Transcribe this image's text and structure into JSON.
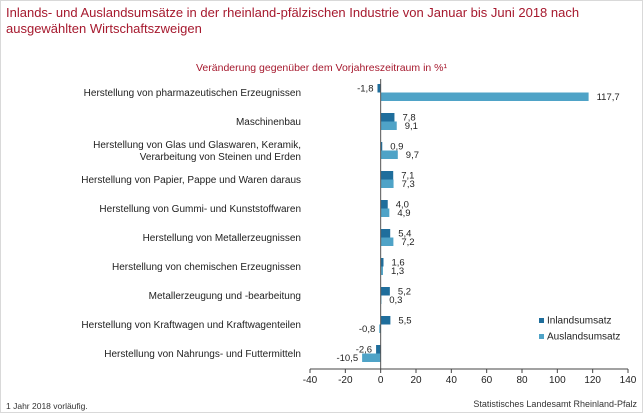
{
  "title": "Inlands- und Auslandsumsätze in der rheinland-pfälzischen Industrie von Januar bis Juni 2018 nach ausgewählten Wirtschaftszweigen",
  "footnote": "1 Jahr 2018 vorläufig.",
  "source": "Statistisches Landesamt Rheinland-Pfalz",
  "colors": {
    "title": "#a6192e",
    "inland": "#1f6e9c",
    "ausland": "#4fa3c7"
  },
  "chart_data": {
    "type": "bar",
    "orientation": "horizontal",
    "title": "Veränderung gegenüber dem Vorjahreszeitraum in %¹",
    "categories": [
      "Herstellung von pharmazeutischen Erzeugnissen",
      "Maschinenbau",
      "Herstellung von Glas und Glaswaren, Keramik, Verarbeitung von Steinen und Erden",
      "Herstellung von Papier, Pappe und Waren daraus",
      "Herstellung von Gummi- und Kunststoffwaren",
      "Herstellung von Metallerzeugnissen",
      "Herstellung von chemischen Erzeugnissen",
      "Metallerzeugung und -bearbeitung",
      "Herstellung von Kraftwagen und Kraftwagenteilen",
      "Herstellung von Nahrungs- und Futtermitteln"
    ],
    "series": [
      {
        "name": "Inlandsumsatz",
        "color": "#1f6e9c",
        "values": [
          -1.8,
          7.8,
          0.9,
          7.1,
          4.0,
          5.4,
          1.6,
          5.2,
          5.5,
          -2.6
        ]
      },
      {
        "name": "Auslandsumsatz",
        "color": "#4fa3c7",
        "values": [
          117.7,
          9.1,
          9.7,
          7.3,
          4.9,
          7.2,
          1.3,
          0.3,
          -0.8,
          -10.5
        ]
      }
    ],
    "value_labels": [
      [
        "-1,8",
        "7,8",
        "0,9",
        "7,1",
        "4,0",
        "5,4",
        "1,6",
        "5,2",
        "5,5",
        "-2,6"
      ],
      [
        "117,7",
        "9,1",
        "9,7",
        "7,3",
        "4,9",
        "7,2",
        "1,3",
        "0,3",
        "-0,8",
        "-10,5"
      ]
    ],
    "xlim": [
      -40,
      140
    ],
    "xticks": [
      -40,
      -20,
      0,
      20,
      40,
      60,
      80,
      100,
      120,
      140
    ],
    "xtick_labels": [
      "-40",
      "-20",
      "0",
      "20",
      "40",
      "60",
      "80",
      "100",
      "120",
      "140"
    ],
    "grid": false,
    "legend": "bottom-right"
  }
}
